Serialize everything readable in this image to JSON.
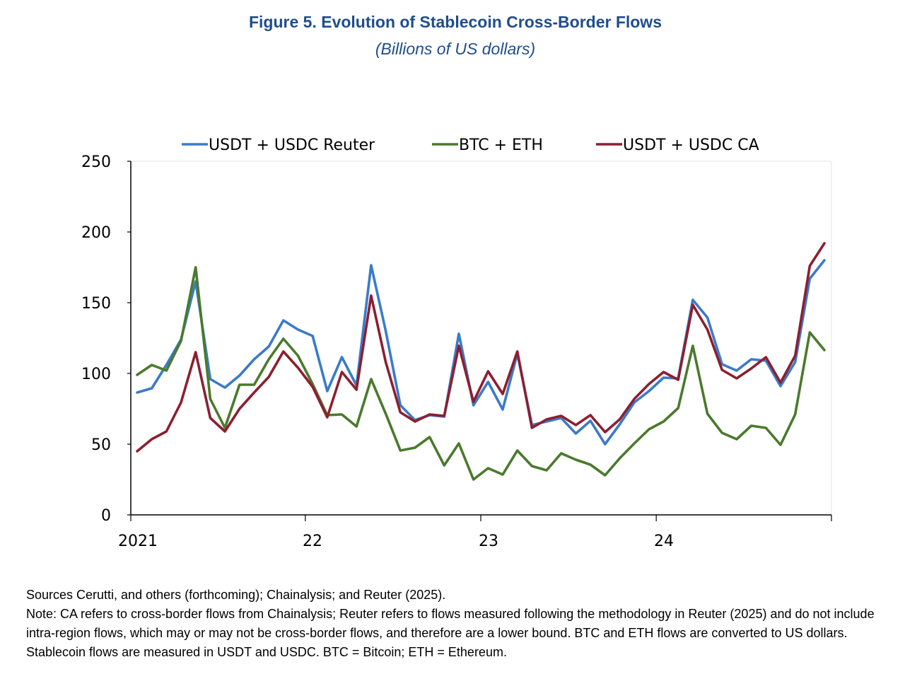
{
  "header": {
    "title": "Figure 5. Evolution of Stablecoin Cross-Border Flows",
    "subtitle": "(Billions of US dollars)"
  },
  "chart_data": {
    "type": "line",
    "title": "Figure 5. Evolution of Stablecoin Cross-Border Flows",
    "subtitle": "(Billions of US dollars)",
    "xlabel": "",
    "ylabel": "",
    "ylim": [
      0,
      250
    ],
    "yticks": [
      0,
      50,
      100,
      150,
      200,
      250
    ],
    "x_period_labels": [
      "2021",
      "22",
      "23",
      "24"
    ],
    "x_count": 48,
    "legend_position": "top",
    "series": [
      {
        "name": "USDT + USDC Reuter",
        "color": "#3a7bc8",
        "values": [
          86.5,
          89.5,
          106,
          124,
          165,
          96,
          90,
          98.5,
          110,
          119,
          137.5,
          131,
          126.5,
          87.5,
          111.5,
          91.5,
          176.5,
          130,
          77.5,
          67,
          70.5,
          69.5,
          128,
          77.5,
          94,
          74.5,
          114,
          63.5,
          66,
          68.5,
          57.5,
          66.5,
          50,
          64,
          79.5,
          87.5,
          97,
          96.5,
          152,
          139.5,
          106.5,
          102,
          110,
          109,
          91,
          108,
          167,
          180
        ]
      },
      {
        "name": "BTC + ETH",
        "color": "#4a7a2c",
        "values": [
          99,
          106,
          102,
          123,
          175,
          82,
          61.5,
          92,
          92,
          110,
          124.5,
          112.5,
          92.5,
          70.5,
          71,
          62.5,
          96,
          71.5,
          45.5,
          47.5,
          55,
          35,
          50.5,
          25,
          33,
          28.5,
          45.5,
          34.5,
          31.5,
          43.5,
          39,
          35.5,
          28,
          40,
          50.5,
          60.5,
          66,
          75.5,
          119.5,
          71.5,
          58,
          53.5,
          63,
          61.5,
          49.5,
          71,
          129,
          116.5
        ]
      },
      {
        "name": "USDT + USDC CA",
        "color": "#8c1f30",
        "values": [
          45,
          53.5,
          59,
          79.5,
          115,
          68.5,
          59,
          75,
          86.5,
          97.5,
          115.5,
          104,
          90.5,
          69,
          101,
          88.5,
          155,
          108,
          72.5,
          66,
          71,
          70,
          119.5,
          80,
          101.5,
          85.5,
          115.5,
          61.5,
          67.5,
          70,
          63.5,
          70.5,
          58.5,
          67.5,
          82,
          92.5,
          101,
          95.5,
          148.5,
          131,
          102.5,
          96.5,
          103.5,
          111.5,
          93.5,
          112.5,
          176,
          192
        ]
      }
    ]
  },
  "footer": {
    "sources": "Sources Cerutti, and others (forthcoming); Chainalysis; and Reuter (2025).",
    "note": "Note: CA refers to cross-border flows from Chainalysis; Reuter refers to flows measured following the methodology in Reuter (2025) and do not include intra-region flows, which may or may not be cross-border flows, and therefore are a lower bound. BTC and ETH flows are converted to US dollars. Stablecoin flows are measured in USDT and USDC. BTC = Bitcoin; ETH = Ethereum."
  }
}
